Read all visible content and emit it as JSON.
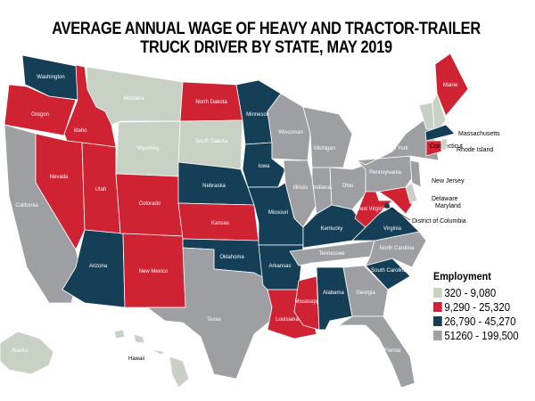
{
  "title": {
    "line1": "AVERAGE ANNUAL WAGE OF HEAVY AND TRACTOR-TRAILER",
    "line2": "TRUCK DRIVER BY STATE, MAY 2019"
  },
  "legend": {
    "title": "Employment",
    "items": [
      {
        "label": "320 - 9,080",
        "color": "#c9d1c5"
      },
      {
        "label": "9,290 - 25,320",
        "color": "#cf2233"
      },
      {
        "label": "26,790 - 45,270",
        "color": "#143f57"
      },
      {
        "label": "51260 - 199,500",
        "color": "#9d9fa2"
      }
    ]
  },
  "states": [
    {
      "name": "Washington",
      "cat": 2
    },
    {
      "name": "Oregon",
      "cat": 1
    },
    {
      "name": "California",
      "cat": 3
    },
    {
      "name": "Idaho",
      "cat": 1
    },
    {
      "name": "Nevada",
      "cat": 1
    },
    {
      "name": "Montana",
      "cat": 0
    },
    {
      "name": "Wyoming",
      "cat": 0
    },
    {
      "name": "Utah",
      "cat": 1
    },
    {
      "name": "Arizona",
      "cat": 2
    },
    {
      "name": "Colorado",
      "cat": 1
    },
    {
      "name": "New Mexico",
      "cat": 1
    },
    {
      "name": "North Dakota",
      "cat": 1
    },
    {
      "name": "South Dakota",
      "cat": 0
    },
    {
      "name": "Nebraska",
      "cat": 2
    },
    {
      "name": "Kansas",
      "cat": 1
    },
    {
      "name": "Oklahoma",
      "cat": 2
    },
    {
      "name": "Texas",
      "cat": 3
    },
    {
      "name": "Minnesota",
      "cat": 2
    },
    {
      "name": "Iowa",
      "cat": 2
    },
    {
      "name": "Missouri",
      "cat": 2
    },
    {
      "name": "Arkansas",
      "cat": 2
    },
    {
      "name": "Louisiana",
      "cat": 1
    },
    {
      "name": "Wisconsin",
      "cat": 3
    },
    {
      "name": "Illinois",
      "cat": 3
    },
    {
      "name": "Michigan",
      "cat": 3
    },
    {
      "name": "Indiana",
      "cat": 3
    },
    {
      "name": "Ohio",
      "cat": 3
    },
    {
      "name": "Kentucky",
      "cat": 2
    },
    {
      "name": "Tennessee",
      "cat": 3
    },
    {
      "name": "Mississippi",
      "cat": 1
    },
    {
      "name": "Alabama",
      "cat": 2
    },
    {
      "name": "Georgia",
      "cat": 3
    },
    {
      "name": "Florida",
      "cat": 3
    },
    {
      "name": "South Carolina",
      "cat": 2
    },
    {
      "name": "North Carolina",
      "cat": 3
    },
    {
      "name": "Virginia",
      "cat": 2
    },
    {
      "name": "West Virginia",
      "cat": 1
    },
    {
      "name": "Pennsylvania",
      "cat": 3
    },
    {
      "name": "New York",
      "cat": 3
    },
    {
      "name": "Maryland",
      "cat": 1
    },
    {
      "name": "Delaware",
      "cat": 0
    },
    {
      "name": "New Jersey",
      "cat": 3
    },
    {
      "name": "Vermont",
      "cat": 0
    },
    {
      "name": "New Hampshire",
      "cat": 0
    },
    {
      "name": "Maine",
      "cat": 1
    },
    {
      "name": "Massachusetts",
      "cat": 2
    },
    {
      "name": "Connecticut",
      "cat": 1
    },
    {
      "name": "Rhode Island",
      "cat": 0
    },
    {
      "name": "District of Columbia",
      "cat": 2
    },
    {
      "name": "Alaska",
      "cat": 0
    },
    {
      "name": "Hawaii",
      "cat": 0
    }
  ]
}
